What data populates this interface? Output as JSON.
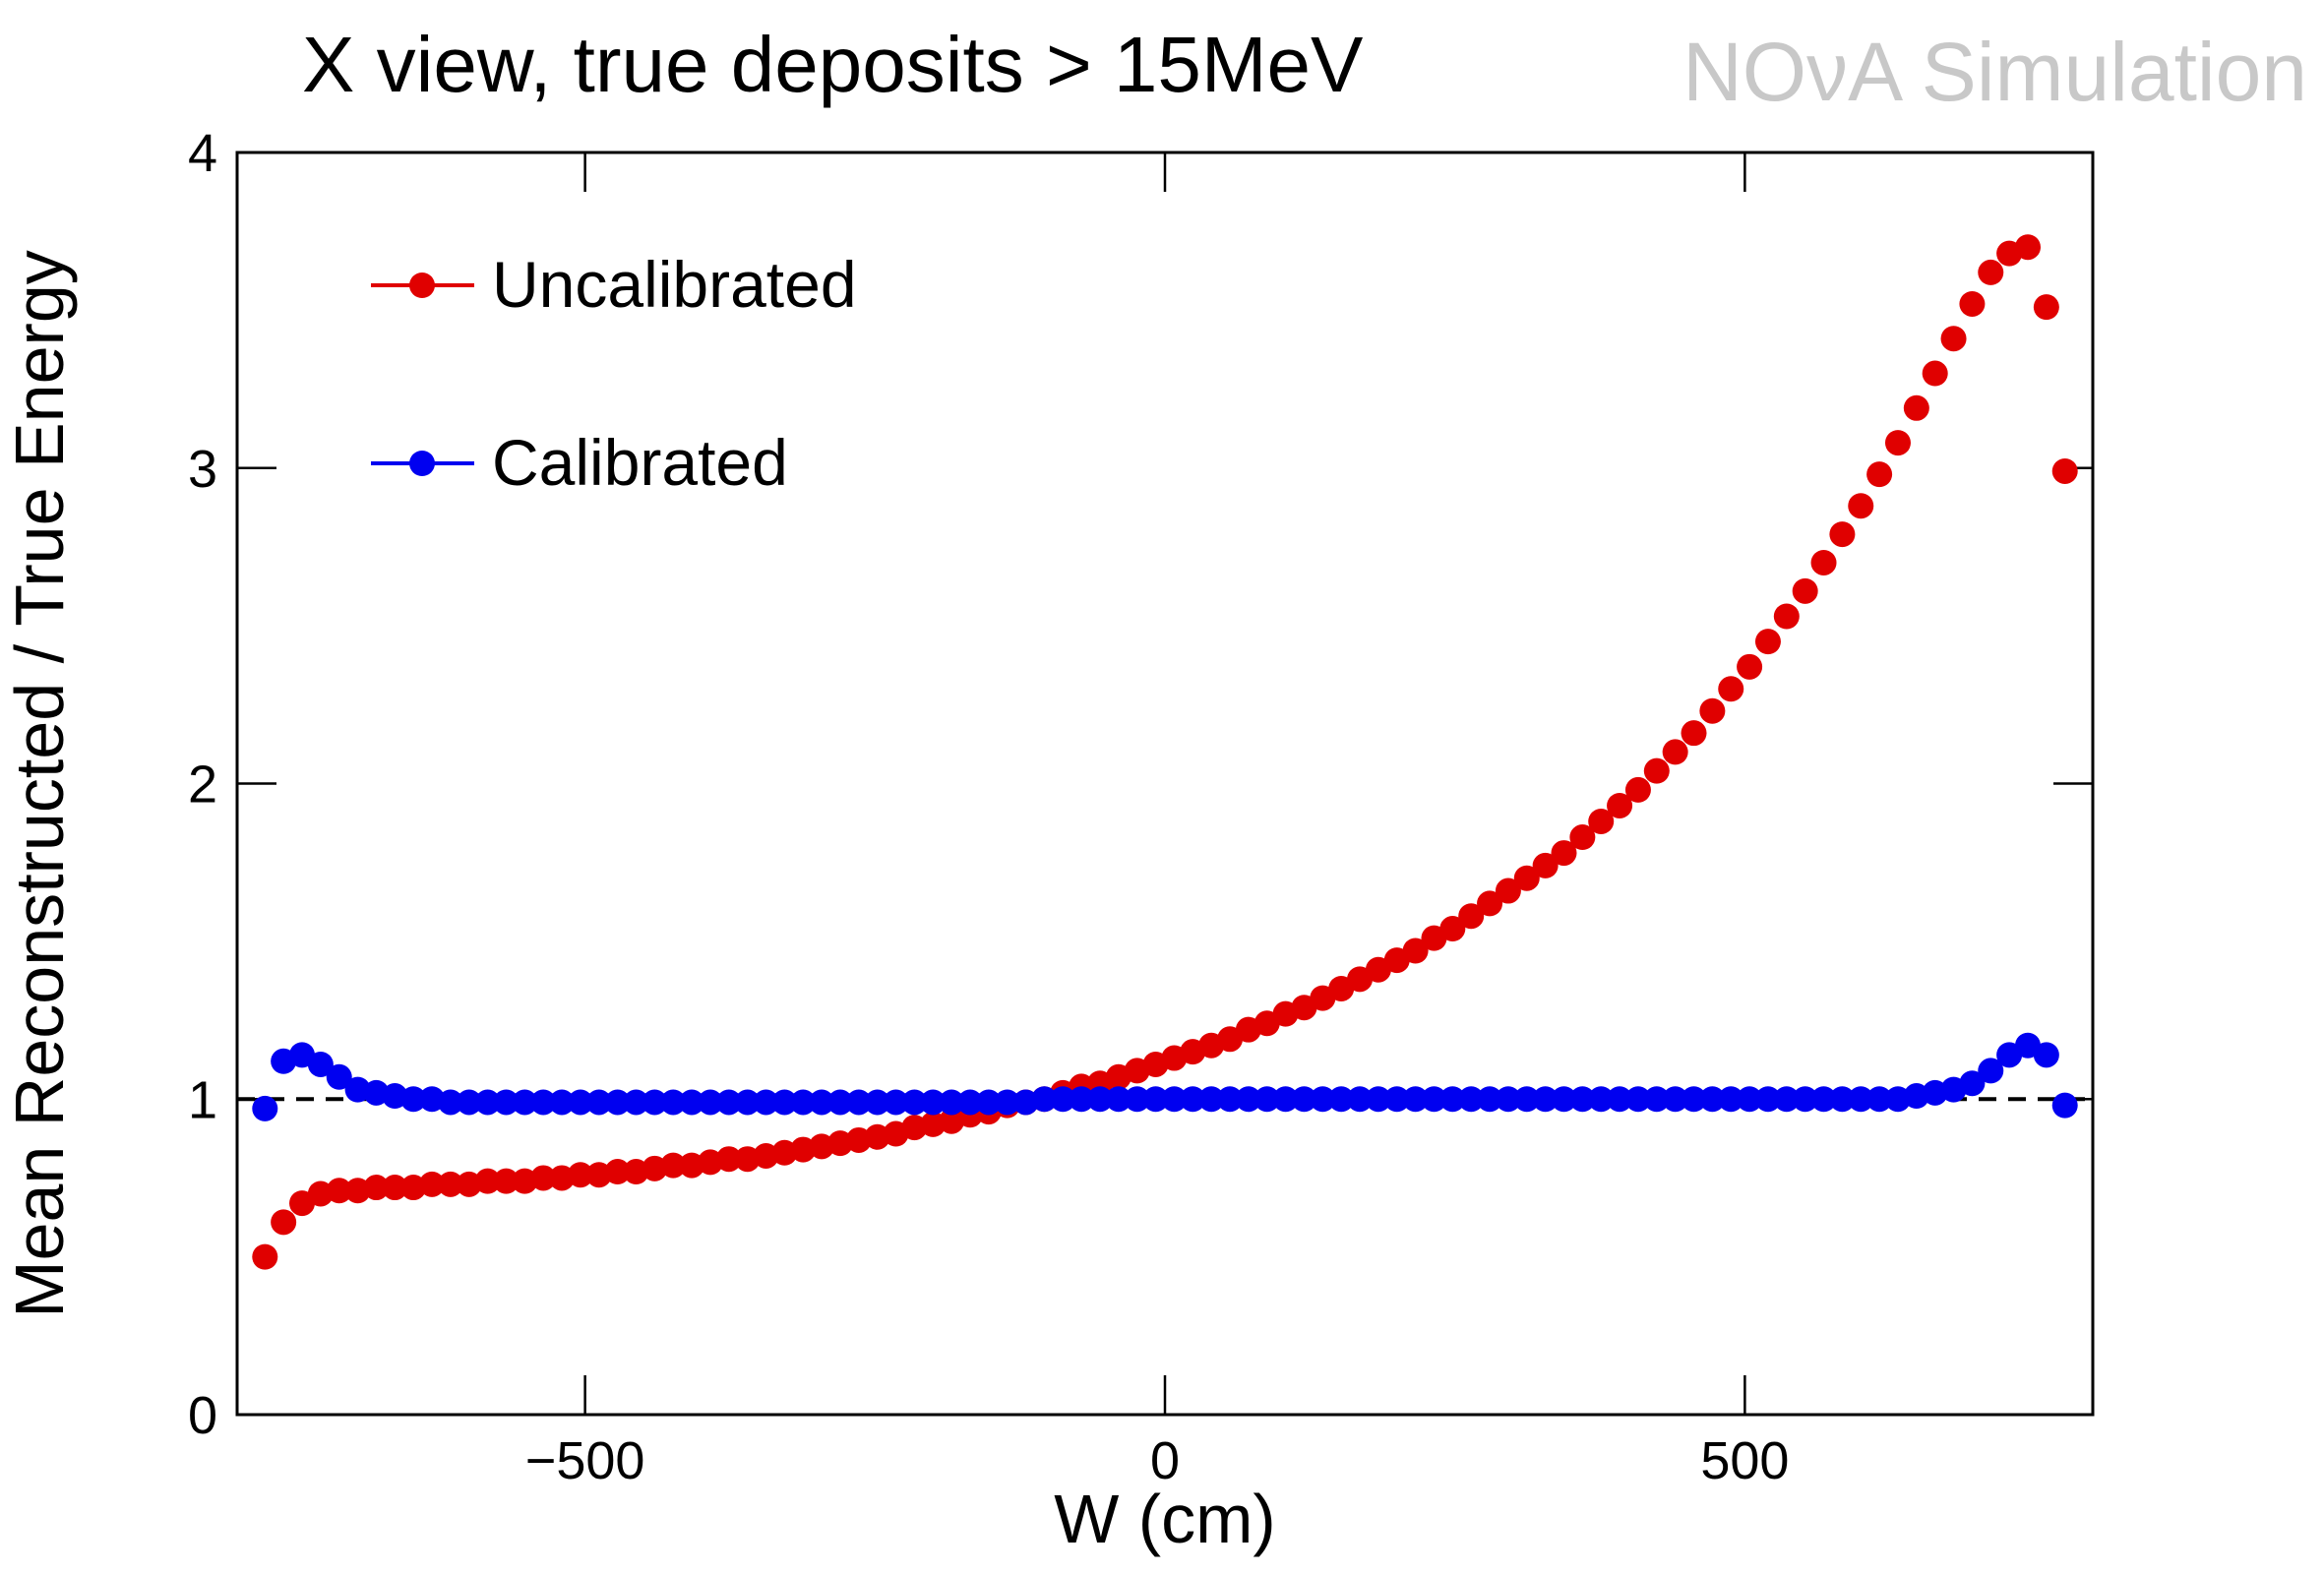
{
  "chart_data": {
    "type": "scatter",
    "title": "X view, true deposits > 15MeV",
    "watermark": "NOνA Simulation",
    "x_label": "W (cm)",
    "y_label": "Mean Reconstructed / True Energy",
    "xlim": [
      -800,
      800
    ],
    "ylim": [
      0,
      4
    ],
    "xticks": [
      {
        "value": -500,
        "label": "−500"
      },
      0,
      500
    ],
    "yticks": [
      0,
      1,
      2,
      3,
      4
    ],
    "reference_line": 1,
    "x": [
      -776,
      -760,
      -744,
      -728,
      -712,
      -696,
      -680,
      -664,
      -648,
      -632,
      -616,
      -600,
      -584,
      -568,
      -552,
      -536,
      -520,
      -504,
      -488,
      -472,
      -456,
      -440,
      -424,
      -408,
      -392,
      -376,
      -360,
      -344,
      -328,
      -312,
      -296,
      -280,
      -264,
      -248,
      -232,
      -216,
      -200,
      -184,
      -168,
      -152,
      -136,
      -120,
      -104,
      -88,
      -72,
      -56,
      -40,
      -24,
      -8,
      8,
      24,
      40,
      56,
      72,
      88,
      104,
      120,
      136,
      152,
      168,
      184,
      200,
      216,
      232,
      248,
      264,
      280,
      296,
      312,
      328,
      344,
      360,
      376,
      392,
      408,
      424,
      440,
      456,
      472,
      488,
      504,
      520,
      536,
      552,
      568,
      584,
      600,
      616,
      632,
      648,
      664,
      680,
      696,
      712,
      728,
      744,
      760,
      776
    ],
    "series": [
      {
        "name": "Uncalibrated",
        "color": "#e00000",
        "values": [
          0.5,
          0.61,
          0.67,
          0.7,
          0.71,
          0.71,
          0.72,
          0.72,
          0.72,
          0.73,
          0.73,
          0.73,
          0.74,
          0.74,
          0.74,
          0.75,
          0.75,
          0.76,
          0.76,
          0.77,
          0.77,
          0.78,
          0.79,
          0.79,
          0.8,
          0.81,
          0.81,
          0.82,
          0.83,
          0.84,
          0.85,
          0.86,
          0.87,
          0.88,
          0.89,
          0.91,
          0.92,
          0.93,
          0.95,
          0.96,
          0.98,
          0.99,
          1.0,
          1.02,
          1.04,
          1.05,
          1.07,
          1.09,
          1.11,
          1.13,
          1.15,
          1.17,
          1.19,
          1.22,
          1.24,
          1.27,
          1.29,
          1.32,
          1.35,
          1.38,
          1.41,
          1.44,
          1.47,
          1.51,
          1.54,
          1.58,
          1.62,
          1.66,
          1.7,
          1.74,
          1.78,
          1.83,
          1.88,
          1.93,
          1.98,
          2.04,
          2.1,
          2.16,
          2.23,
          2.3,
          2.37,
          2.45,
          2.53,
          2.61,
          2.7,
          2.79,
          2.88,
          2.98,
          3.08,
          3.19,
          3.3,
          3.41,
          3.52,
          3.62,
          3.68,
          3.7,
          3.51,
          2.99
        ]
      },
      {
        "name": "Calibrated",
        "color": "#0000f0",
        "values": [
          0.97,
          1.12,
          1.14,
          1.11,
          1.07,
          1.03,
          1.02,
          1.01,
          1.0,
          1.0,
          0.99,
          0.99,
          0.99,
          0.99,
          0.99,
          0.99,
          0.99,
          0.99,
          0.99,
          0.99,
          0.99,
          0.99,
          0.99,
          0.99,
          0.99,
          0.99,
          0.99,
          0.99,
          0.99,
          0.99,
          0.99,
          0.99,
          0.99,
          0.99,
          0.99,
          0.99,
          0.99,
          0.99,
          0.99,
          0.99,
          0.99,
          0.99,
          1.0,
          1.0,
          1.0,
          1.0,
          1.0,
          1.0,
          1.0,
          1.0,
          1.0,
          1.0,
          1.0,
          1.0,
          1.0,
          1.0,
          1.0,
          1.0,
          1.0,
          1.0,
          1.0,
          1.0,
          1.0,
          1.0,
          1.0,
          1.0,
          1.0,
          1.0,
          1.0,
          1.0,
          1.0,
          1.0,
          1.0,
          1.0,
          1.0,
          1.0,
          1.0,
          1.0,
          1.0,
          1.0,
          1.0,
          1.0,
          1.0,
          1.0,
          1.0,
          1.0,
          1.0,
          1.0,
          1.0,
          1.01,
          1.02,
          1.03,
          1.05,
          1.09,
          1.14,
          1.17,
          1.14,
          0.98
        ]
      }
    ]
  }
}
